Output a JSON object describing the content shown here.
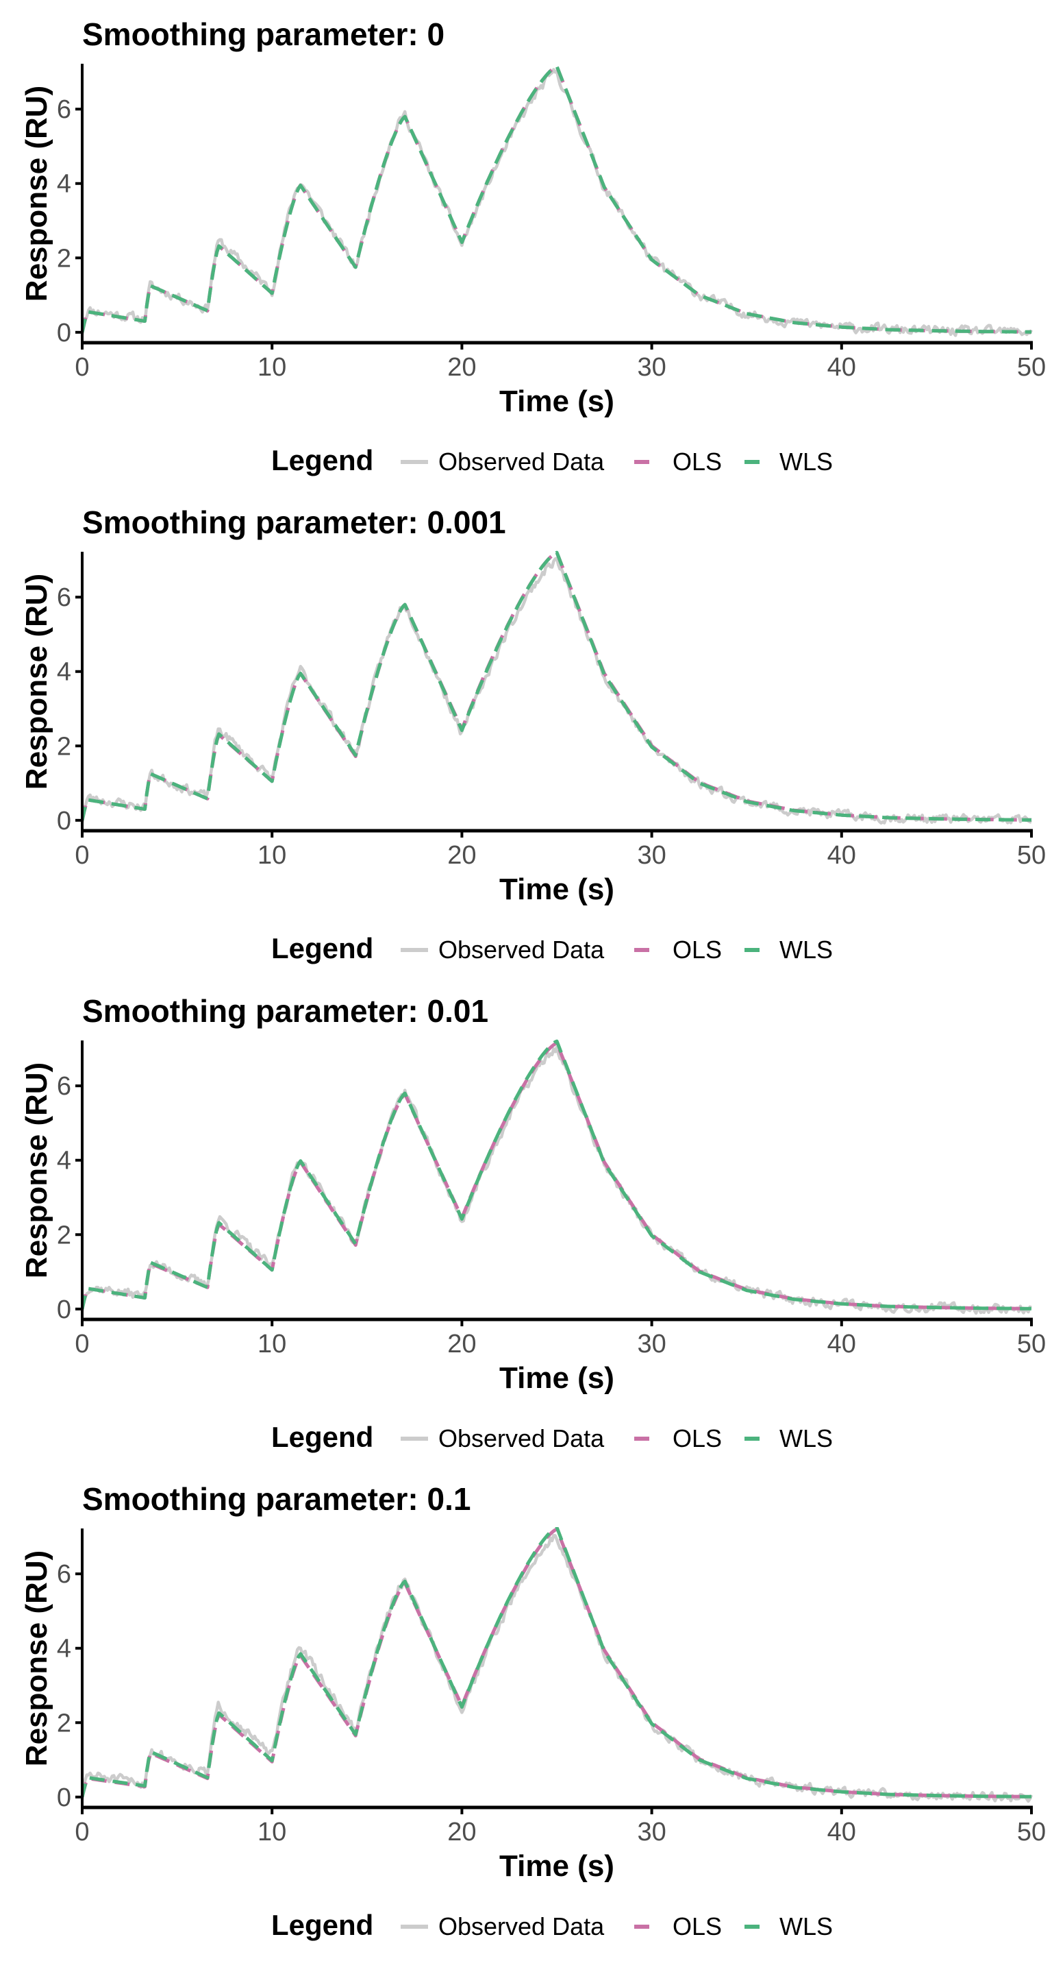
{
  "figure": {
    "legend_title": "Legend",
    "colors": {
      "observed": "#cccccc",
      "ols": "#c971a5",
      "wls": "#4bb37d",
      "axis": "#000000",
      "tick_text": "#4d4d4d"
    }
  },
  "chart_data": [
    {
      "type": "line",
      "title": "Smoothing parameter: 0",
      "xlabel": "Time (s)",
      "ylabel": "Response (RU)",
      "xlim": [
        0,
        50
      ],
      "ylim": [
        -0.28,
        7.22
      ],
      "xticks": [
        0,
        10,
        20,
        30,
        40,
        50
      ],
      "yticks": [
        0,
        2,
        4,
        6
      ],
      "grid": false,
      "legend": {
        "position": "bottom",
        "entries": [
          "Observed Data",
          "OLS",
          "WLS"
        ]
      },
      "series": [
        {
          "name": "Observed Data",
          "style": "solid",
          "noise_seed": 11,
          "noise_amp": 0.12,
          "x": [
            0,
            0.3,
            3.3,
            3.6,
            6.6,
            7.2,
            10.0,
            11.5,
            14.4,
            17.0,
            20.0,
            25.0,
            27.5,
            30,
            32.5,
            35,
            37.5,
            40,
            42.5,
            45,
            47.5,
            50
          ],
          "y": [
            0,
            0.6,
            0.35,
            1.25,
            0.62,
            2.45,
            1.1,
            4.05,
            1.75,
            5.85,
            2.35,
            7.0,
            3.9,
            1.95,
            1.0,
            0.5,
            0.26,
            0.14,
            0.07,
            0.04,
            0.02,
            0.01
          ]
        },
        {
          "name": "OLS",
          "style": "dashed",
          "x": [
            0,
            0.3,
            3.3,
            3.6,
            6.6,
            7.2,
            10.0,
            11.5,
            14.4,
            17.0,
            20.0,
            25.0,
            27.5,
            30,
            32.5,
            35,
            37.5,
            40,
            42.5,
            45,
            47.5,
            50
          ],
          "y": [
            0,
            0.55,
            0.3,
            1.25,
            0.58,
            2.32,
            1.05,
            3.95,
            1.75,
            5.8,
            2.42,
            7.15,
            3.9,
            1.95,
            1.0,
            0.5,
            0.26,
            0.14,
            0.07,
            0.04,
            0.02,
            0.01
          ]
        },
        {
          "name": "WLS",
          "style": "dashed",
          "x": [
            0,
            0.3,
            3.3,
            3.6,
            6.6,
            7.2,
            10.0,
            11.5,
            14.4,
            17.0,
            20.0,
            25.0,
            27.5,
            30,
            32.5,
            35,
            37.5,
            40,
            42.5,
            45,
            47.5,
            50
          ],
          "y": [
            0,
            0.55,
            0.3,
            1.25,
            0.58,
            2.32,
            1.05,
            3.95,
            1.75,
            5.8,
            2.42,
            7.15,
            3.9,
            1.95,
            1.0,
            0.5,
            0.26,
            0.14,
            0.07,
            0.04,
            0.02,
            0.01
          ]
        }
      ]
    },
    {
      "type": "line",
      "title": "Smoothing parameter: 0.001",
      "xlabel": "Time (s)",
      "ylabel": "Response (RU)",
      "xlim": [
        0,
        50
      ],
      "ylim": [
        -0.28,
        7.22
      ],
      "xticks": [
        0,
        10,
        20,
        30,
        40,
        50
      ],
      "yticks": [
        0,
        2,
        4,
        6
      ],
      "grid": false,
      "legend": {
        "position": "bottom",
        "entries": [
          "Observed Data",
          "OLS",
          "WLS"
        ]
      },
      "series": [
        {
          "name": "Observed Data",
          "style": "solid",
          "noise_seed": 23,
          "noise_amp": 0.12,
          "x": [
            0,
            0.3,
            3.3,
            3.6,
            6.6,
            7.2,
            10.0,
            11.5,
            14.4,
            17.0,
            20.0,
            25.0,
            27.5,
            30,
            32.5,
            35,
            37.5,
            40,
            42.5,
            45,
            47.5,
            50
          ],
          "y": [
            0,
            0.6,
            0.35,
            1.25,
            0.62,
            2.45,
            1.1,
            4.05,
            1.75,
            5.85,
            2.35,
            7.0,
            3.9,
            1.95,
            1.0,
            0.5,
            0.26,
            0.14,
            0.07,
            0.04,
            0.02,
            0.01
          ]
        },
        {
          "name": "OLS",
          "style": "dashed",
          "x": [
            0,
            0.3,
            3.3,
            3.6,
            6.6,
            7.2,
            10.0,
            11.5,
            14.4,
            17.0,
            20.0,
            25.0,
            27.5,
            30,
            32.5,
            35,
            37.5,
            40,
            42.5,
            45,
            47.5,
            50
          ],
          "y": [
            0,
            0.55,
            0.3,
            1.25,
            0.58,
            2.3,
            1.05,
            3.95,
            1.72,
            5.8,
            2.45,
            7.2,
            3.95,
            2.0,
            1.02,
            0.52,
            0.27,
            0.14,
            0.07,
            0.04,
            0.02,
            0.01
          ]
        },
        {
          "name": "WLS",
          "style": "dashed",
          "x": [
            0,
            0.3,
            3.3,
            3.6,
            6.6,
            7.2,
            10.0,
            11.5,
            14.4,
            17.0,
            20.0,
            25.0,
            27.5,
            30,
            32.5,
            35,
            37.5,
            40,
            42.5,
            45,
            47.5,
            50
          ],
          "y": [
            0,
            0.55,
            0.3,
            1.25,
            0.58,
            2.32,
            1.05,
            3.95,
            1.75,
            5.8,
            2.42,
            7.2,
            3.92,
            1.97,
            1.0,
            0.5,
            0.26,
            0.14,
            0.07,
            0.04,
            0.02,
            0.01
          ]
        }
      ]
    },
    {
      "type": "line",
      "title": "Smoothing parameter: 0.01",
      "xlabel": "Time (s)",
      "ylabel": "Response (RU)",
      "xlim": [
        0,
        50
      ],
      "ylim": [
        -0.28,
        7.22
      ],
      "xticks": [
        0,
        10,
        20,
        30,
        40,
        50
      ],
      "yticks": [
        0,
        2,
        4,
        6
      ],
      "grid": false,
      "legend": {
        "position": "bottom",
        "entries": [
          "Observed Data",
          "OLS",
          "WLS"
        ]
      },
      "series": [
        {
          "name": "Observed Data",
          "style": "solid",
          "noise_seed": 37,
          "noise_amp": 0.12,
          "x": [
            0,
            0.3,
            3.3,
            3.6,
            6.6,
            7.2,
            10.0,
            11.5,
            14.4,
            17.0,
            20.0,
            25.0,
            27.5,
            30,
            32.5,
            35,
            37.5,
            40,
            42.5,
            45,
            47.5,
            50
          ],
          "y": [
            0,
            0.6,
            0.35,
            1.25,
            0.62,
            2.45,
            1.1,
            4.05,
            1.75,
            5.85,
            2.35,
            7.0,
            3.9,
            1.95,
            1.0,
            0.5,
            0.26,
            0.14,
            0.07,
            0.04,
            0.02,
            0.01
          ]
        },
        {
          "name": "OLS",
          "style": "dashed",
          "x": [
            0,
            0.3,
            3.3,
            3.6,
            6.6,
            7.2,
            10.0,
            11.5,
            14.4,
            17.0,
            20.0,
            25.0,
            27.5,
            30,
            32.5,
            35,
            37.5,
            40,
            42.5,
            45,
            47.5,
            50
          ],
          "y": [
            0,
            0.55,
            0.3,
            1.22,
            0.58,
            2.28,
            1.05,
            3.95,
            1.72,
            5.78,
            2.45,
            7.15,
            3.95,
            2.0,
            1.02,
            0.52,
            0.27,
            0.14,
            0.07,
            0.04,
            0.02,
            0.01
          ]
        },
        {
          "name": "WLS",
          "style": "dashed",
          "x": [
            0,
            0.3,
            3.3,
            3.6,
            6.6,
            7.2,
            10.0,
            11.5,
            14.4,
            17.0,
            20.0,
            25.0,
            27.5,
            30,
            32.5,
            35,
            37.5,
            40,
            42.5,
            45,
            47.5,
            50
          ],
          "y": [
            0,
            0.55,
            0.3,
            1.25,
            0.58,
            2.32,
            1.05,
            3.98,
            1.75,
            5.8,
            2.42,
            7.2,
            3.92,
            1.97,
            1.0,
            0.5,
            0.26,
            0.14,
            0.07,
            0.04,
            0.02,
            0.01
          ]
        }
      ]
    },
    {
      "type": "line",
      "title": "Smoothing parameter: 0.1",
      "xlabel": "Time (s)",
      "ylabel": "Response (RU)",
      "xlim": [
        0,
        50
      ],
      "ylim": [
        -0.28,
        7.22
      ],
      "xticks": [
        0,
        10,
        20,
        30,
        40,
        50
      ],
      "yticks": [
        0,
        2,
        4,
        6
      ],
      "grid": false,
      "legend": {
        "position": "bottom",
        "entries": [
          "Observed Data",
          "OLS",
          "WLS"
        ]
      },
      "series": [
        {
          "name": "Observed Data",
          "style": "solid",
          "noise_seed": 51,
          "noise_amp": 0.12,
          "x": [
            0,
            0.3,
            3.3,
            3.6,
            6.6,
            7.2,
            10.0,
            11.5,
            14.4,
            17.0,
            20.0,
            25.0,
            27.5,
            30,
            32.5,
            35,
            37.5,
            40,
            42.5,
            45,
            47.5,
            50
          ],
          "y": [
            0,
            0.6,
            0.35,
            1.25,
            0.62,
            2.45,
            1.1,
            4.05,
            1.75,
            5.85,
            2.35,
            7.0,
            3.9,
            1.95,
            1.0,
            0.5,
            0.26,
            0.14,
            0.07,
            0.04,
            0.02,
            0.01
          ]
        },
        {
          "name": "OLS",
          "style": "dashed",
          "x": [
            0,
            0.3,
            3.3,
            3.6,
            6.6,
            7.2,
            10.0,
            11.5,
            14.4,
            17.0,
            20.0,
            25.0,
            27.5,
            30,
            32.5,
            35,
            37.5,
            40,
            42.5,
            45,
            47.5,
            50
          ],
          "y": [
            0,
            0.5,
            0.28,
            1.18,
            0.5,
            2.22,
            0.95,
            3.8,
            1.65,
            5.75,
            2.45,
            7.2,
            3.95,
            2.0,
            1.02,
            0.52,
            0.27,
            0.14,
            0.07,
            0.04,
            0.02,
            0.01
          ]
        },
        {
          "name": "WLS",
          "style": "dashed",
          "x": [
            0,
            0.3,
            3.3,
            3.6,
            6.6,
            7.2,
            10.0,
            11.5,
            14.4,
            17.0,
            20.0,
            25.0,
            27.5,
            30,
            32.5,
            35,
            37.5,
            40,
            42.5,
            45,
            47.5,
            50
          ],
          "y": [
            0,
            0.52,
            0.3,
            1.22,
            0.52,
            2.26,
            0.98,
            3.85,
            1.68,
            5.8,
            2.42,
            7.25,
            3.92,
            1.97,
            1.0,
            0.5,
            0.26,
            0.14,
            0.07,
            0.04,
            0.02,
            0.01
          ]
        }
      ]
    }
  ]
}
